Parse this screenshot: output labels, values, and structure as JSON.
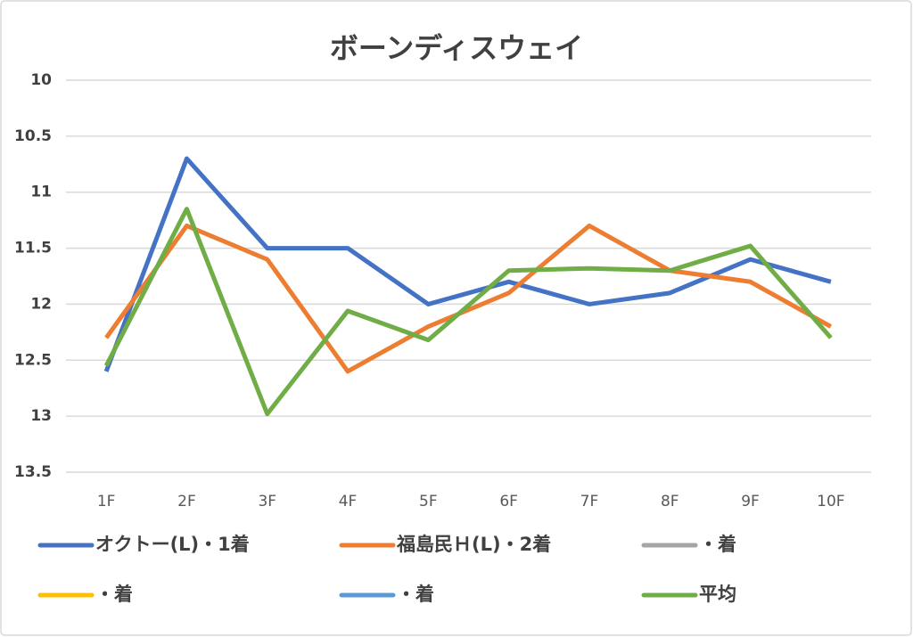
{
  "chart_data": {
    "type": "line",
    "title": "ボーンディスウェイ",
    "categories": [
      "1F",
      "2F",
      "3F",
      "4F",
      "5F",
      "6F",
      "7F",
      "8F",
      "9F",
      "10F"
    ],
    "series": [
      {
        "name": "オクトー(L)・1着",
        "color": "#4472c4",
        "values": [
          12.6,
          10.7,
          11.5,
          11.5,
          12.0,
          11.8,
          12.0,
          11.9,
          11.6,
          11.8
        ]
      },
      {
        "name": "福島民Ｈ(L)・2着",
        "color": "#ed7d31",
        "values": [
          12.3,
          11.3,
          11.6,
          12.6,
          12.2,
          11.9,
          11.3,
          11.7,
          11.8,
          12.2
        ]
      },
      {
        "name": "・着",
        "color": "#a5a5a5",
        "values": [
          null,
          null,
          null,
          null,
          null,
          null,
          null,
          null,
          null,
          null
        ]
      },
      {
        "name": "・着",
        "color": "#ffc000",
        "values": [
          null,
          null,
          null,
          null,
          null,
          null,
          null,
          null,
          null,
          null
        ]
      },
      {
        "name": "・着",
        "color": "#5b9bd5",
        "values": [
          null,
          null,
          null,
          null,
          null,
          null,
          null,
          null,
          null,
          null
        ]
      },
      {
        "name": "平均",
        "color": "#70ad47",
        "values": [
          12.55,
          11.15,
          12.98,
          12.06,
          12.32,
          11.7,
          11.68,
          11.7,
          11.48,
          12.3
        ]
      }
    ],
    "ylim": [
      10,
      13.5
    ],
    "yticks": [
      10,
      10.5,
      11,
      11.5,
      12,
      12.5,
      13,
      13.5
    ],
    "y_inverted": true,
    "grid": true,
    "legend": "bottom"
  }
}
